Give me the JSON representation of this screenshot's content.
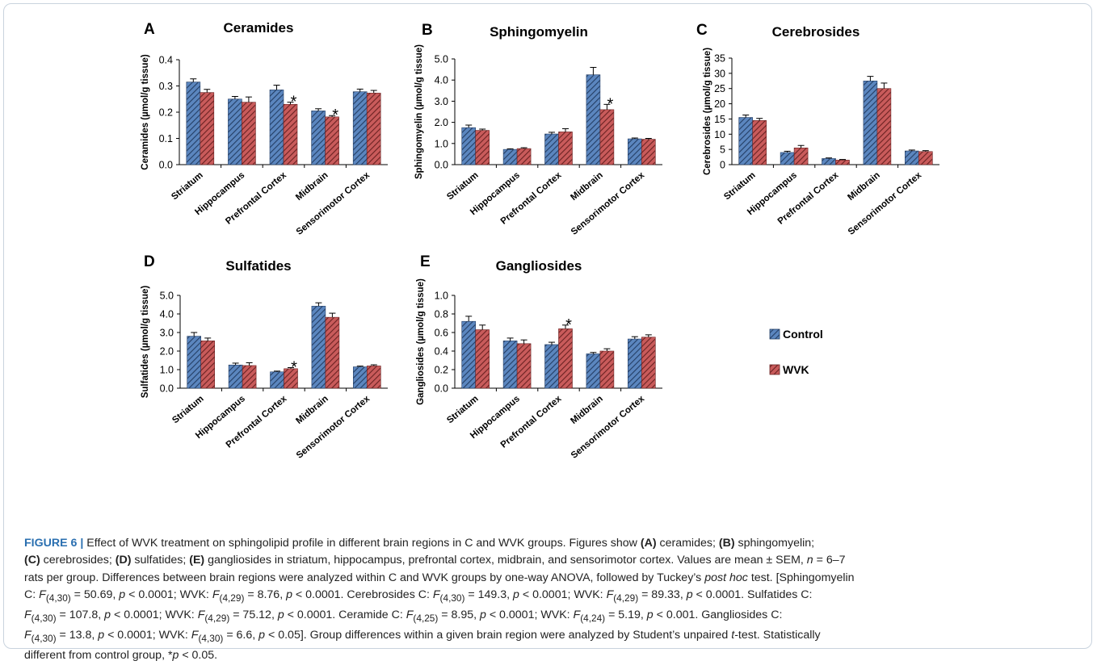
{
  "colors": {
    "control": "#5b86bf",
    "wvk": "#c95b5b",
    "control_stripe": "#243e64",
    "wvk_stripe": "#6a2222",
    "caption_accent": "#2a6fb0"
  },
  "legend": {
    "control": "Control",
    "wvk": "WVK"
  },
  "chart_data": [
    {
      "type": "bar",
      "letter": "A",
      "title": "Ceramides",
      "ylabel": "Ceramides (µmol/g tissue)",
      "categories": [
        "Striatum",
        "Hippocampus",
        "Prefrontal Cortex",
        "Midbrain",
        "Sensorimotor Cortex"
      ],
      "ylim": [
        0,
        0.4
      ],
      "yticks": [
        "0.0",
        "0.1",
        "0.2",
        "0.3",
        "0.4"
      ],
      "series": [
        {
          "name": "Control",
          "values": [
            0.315,
            0.25,
            0.285,
            0.205,
            0.278
          ],
          "errors": [
            0.012,
            0.01,
            0.018,
            0.008,
            0.01
          ]
        },
        {
          "name": "WVK",
          "values": [
            0.275,
            0.238,
            0.23,
            0.182,
            0.273
          ],
          "errors": [
            0.012,
            0.02,
            0.008,
            0.005,
            0.01
          ]
        }
      ],
      "significant": [
        {
          "category": 2,
          "series": 1,
          "text": "*"
        },
        {
          "category": 3,
          "series": 1,
          "text": "*"
        }
      ]
    },
    {
      "type": "bar",
      "letter": "B",
      "title": "Sphingomyelin",
      "ylabel": "Sphingomyelin (µmol/g tissue)",
      "categories": [
        "Striatum",
        "Hippocampus",
        "Prefrontal Cortex",
        "Midbrain",
        "Sensorimotor Cortex"
      ],
      "ylim": [
        0,
        5
      ],
      "yticks": [
        "0.0",
        "1.0",
        "2.0",
        "3.0",
        "4.0",
        "5.0"
      ],
      "series": [
        {
          "name": "Control",
          "values": [
            1.75,
            0.72,
            1.45,
            4.25,
            1.22
          ],
          "errors": [
            0.12,
            0.03,
            0.08,
            0.35,
            0.04
          ]
        },
        {
          "name": "WVK",
          "values": [
            1.62,
            0.76,
            1.55,
            2.6,
            1.2
          ],
          "errors": [
            0.06,
            0.04,
            0.15,
            0.25,
            0.04
          ]
        }
      ],
      "significant": [
        {
          "category": 3,
          "series": 1,
          "text": "*"
        }
      ]
    },
    {
      "type": "bar",
      "letter": "C",
      "title": "Cerebrosides",
      "ylabel": "Cerebrosides (µmol/g tissue)",
      "categories": [
        "Striatum",
        "Hippocampus",
        "Prefrontal Cortex",
        "Midbrain",
        "Sensorimotor Cortex"
      ],
      "ylim": [
        0,
        35
      ],
      "yticks": [
        "0",
        "5",
        "10",
        "15",
        "20",
        "25",
        "30",
        "35"
      ],
      "series": [
        {
          "name": "Control",
          "values": [
            15.5,
            4.0,
            2.0,
            27.5,
            4.5
          ],
          "errors": [
            0.8,
            0.4,
            0.2,
            1.5,
            0.3
          ]
        },
        {
          "name": "WVK",
          "values": [
            14.5,
            5.5,
            1.5,
            25.0,
            4.3
          ],
          "errors": [
            0.7,
            0.8,
            0.2,
            1.8,
            0.3
          ]
        }
      ],
      "significant": []
    },
    {
      "type": "bar",
      "letter": "D",
      "title": "Sulfatides",
      "ylabel": "Sulfatides (µmol/g tissue)",
      "categories": [
        "Striatum",
        "Hippocampus",
        "Prefrontal Cortex",
        "Midbrain",
        "Sensorimotor Cortex"
      ],
      "ylim": [
        0,
        5
      ],
      "yticks": [
        "0.0",
        "1.0",
        "2.0",
        "3.0",
        "4.0",
        "5.0"
      ],
      "series": [
        {
          "name": "Control",
          "values": [
            2.8,
            1.25,
            0.88,
            4.42,
            1.15
          ],
          "errors": [
            0.2,
            0.1,
            0.04,
            0.18,
            0.04
          ]
        },
        {
          "name": "WVK",
          "values": [
            2.55,
            1.22,
            1.05,
            3.82,
            1.2
          ],
          "errors": [
            0.15,
            0.15,
            0.06,
            0.22,
            0.06
          ]
        }
      ],
      "significant": [
        {
          "category": 2,
          "series": 1,
          "text": "*"
        }
      ]
    },
    {
      "type": "bar",
      "letter": "E",
      "title": "Gangliosides",
      "ylabel": "Gangliosides (µmol/g tissue)",
      "categories": [
        "Striatum",
        "Hippocampus",
        "Prefrontal Cortex",
        "Midbrain",
        "Sensorimotor Cortex"
      ],
      "ylim": [
        0,
        1.0
      ],
      "yticks": [
        "0.0",
        "0.2",
        "0.4",
        "0.6",
        "0.8",
        "1.0"
      ],
      "series": [
        {
          "name": "Control",
          "values": [
            0.72,
            0.51,
            0.47,
            0.37,
            0.53
          ],
          "errors": [
            0.055,
            0.03,
            0.025,
            0.015,
            0.025
          ]
        },
        {
          "name": "WVK",
          "values": [
            0.63,
            0.48,
            0.64,
            0.4,
            0.55
          ],
          "errors": [
            0.05,
            0.04,
            0.04,
            0.025,
            0.025
          ]
        }
      ],
      "significant": [
        {
          "category": 2,
          "series": 1,
          "text": "*"
        }
      ]
    }
  ],
  "caption": {
    "label": "FIGURE 6 |",
    "lines": [
      "Effect of WVK treatment on sphingolipid profile in different brain regions in C and WVK groups. Figures show (A) ceramides; (B) sphingomyelin;",
      "(C) cerebrosides; (D) sulfatides; (E) gangliosides in striatum, hippocampus, prefrontal cortex, midbrain, and sensorimotor cortex. Values are mean ± SEM, n = 6–7",
      "rats per group. Differences between brain regions were analyzed within C and WVK groups by one-way ANOVA, followed by Tuckey’s post hoc test. [Sphingomyelin",
      "C: F(4,30) = 50.69, p < 0.0001; WVK: F(4,29) = 8.76, p < 0.0001. Cerebrosides C: F(4,30) = 149.3, p < 0.0001; WVK: F(4,29) = 89.33, p < 0.0001. Sulfatides C:",
      "F(4,30) = 107.8, p < 0.0001; WVK: F(4,29) = 75.12, p < 0.0001. Ceramide C: F(4,25) = 8.95, p < 0.0001; WVK: F(4,24) = 5.19, p < 0.001. Gangliosides C:",
      "F(4,30) = 13.8, p < 0.0001; WVK: F(4,30) = 6.6, p < 0.05]. Group differences within a given brain region were analyzed by Student’s unpaired t-test. Statistically",
      "different from control group, *p < 0.05."
    ]
  }
}
